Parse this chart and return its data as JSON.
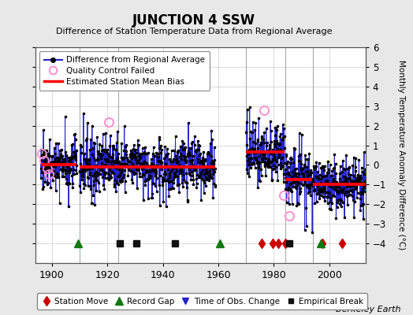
{
  "title": "JUNCTION 4 SSW",
  "subtitle": "Difference of Station Temperature Data from Regional Average",
  "ylabel": "Monthly Temperature Anomaly Difference (°C)",
  "xlabel_years": [
    1900,
    1920,
    1940,
    1960,
    1980,
    2000
  ],
  "ylim": [
    -5,
    6
  ],
  "xlim": [
    1894,
    2013
  ],
  "background_color": "#e8e8e8",
  "plot_bg_color": "#ffffff",
  "grid_color": "#cccccc",
  "data_segments": [
    {
      "xstart": 1896,
      "xend": 1909.0,
      "bias": 0.0,
      "std": 0.55
    },
    {
      "xstart": 1910.0,
      "xend": 1958.9,
      "bias": -0.1,
      "std": 0.7
    },
    {
      "xstart": 1970.0,
      "xend": 1983.9,
      "bias": 0.6,
      "std": 0.75
    },
    {
      "xstart": 1984.0,
      "xend": 1993.9,
      "bias": -0.7,
      "std": 0.65
    },
    {
      "xstart": 1994.0,
      "xend": 2012.9,
      "bias": -1.0,
      "std": 0.6
    }
  ],
  "bias_segments": [
    {
      "xstart": 1896,
      "xend": 1909.0,
      "bias": 0.0
    },
    {
      "xstart": 1910.0,
      "xend": 1958.9,
      "bias": -0.1
    },
    {
      "xstart": 1970.0,
      "xend": 1983.9,
      "bias": 0.65
    },
    {
      "xstart": 1984.0,
      "xend": 1993.9,
      "bias": -0.75
    },
    {
      "xstart": 1994.0,
      "xend": 2012.9,
      "bias": -1.0
    }
  ],
  "vertical_lines": [
    1910,
    1924,
    1970,
    1984,
    1994
  ],
  "vertical_line_color": "#aaaaaa",
  "qc_failed": [
    {
      "t": 1896.5,
      "v": 0.6
    },
    {
      "t": 1897.3,
      "v": 0.2
    },
    {
      "t": 1898.5,
      "v": -0.2
    },
    {
      "t": 1899.0,
      "v": -0.45
    },
    {
      "t": 1920.5,
      "v": 2.2
    },
    {
      "t": 1976.5,
      "v": 2.8
    },
    {
      "t": 1983.5,
      "v": -1.55
    },
    {
      "t": 1985.5,
      "v": -2.6
    }
  ],
  "station_moves": [
    1975.5,
    1979.5,
    1981.5,
    1984.2,
    1997.5,
    2004.5
  ],
  "record_gaps": [
    1909.5,
    1960.5,
    1997.0
  ],
  "obs_changes": [],
  "empirical_breaks": [
    1924.5,
    1930.5,
    1944.5,
    1985.5
  ],
  "marker_y": -4.0,
  "seed": 1234
}
